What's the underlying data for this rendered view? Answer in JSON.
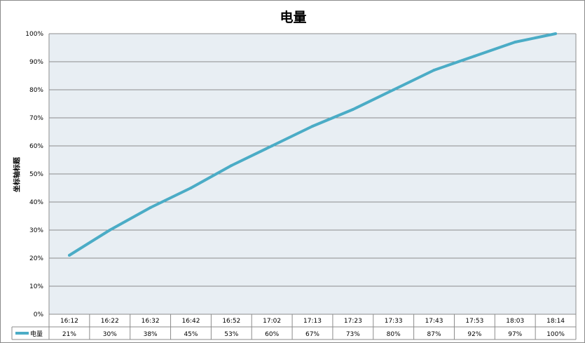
{
  "chart_data": {
    "type": "line",
    "title": "电量",
    "ylabel": "坐标轴标题",
    "xlabel": "",
    "categories": [
      "16:12",
      "16:22",
      "16:32",
      "16:42",
      "16:52",
      "17:02",
      "17:13",
      "17:23",
      "17:33",
      "17:43",
      "17:53",
      "18:03",
      "18:14"
    ],
    "series": [
      {
        "name": "电量",
        "values": [
          21,
          30,
          38,
          45,
          53,
          60,
          67,
          73,
          80,
          87,
          92,
          97,
          100
        ],
        "labels": [
          "21%",
          "30%",
          "38%",
          "45%",
          "53%",
          "60%",
          "67%",
          "73%",
          "80%",
          "87%",
          "92%",
          "97%",
          "100%"
        ],
        "color": "#4bacc6"
      }
    ],
    "ylim": [
      0,
      100
    ],
    "yticks": [
      "0%",
      "10%",
      "20%",
      "30%",
      "40%",
      "50%",
      "60%",
      "70%",
      "80%",
      "90%",
      "100%"
    ],
    "grid": true,
    "legend": "data-table",
    "plot_background": "#e8eef3"
  }
}
